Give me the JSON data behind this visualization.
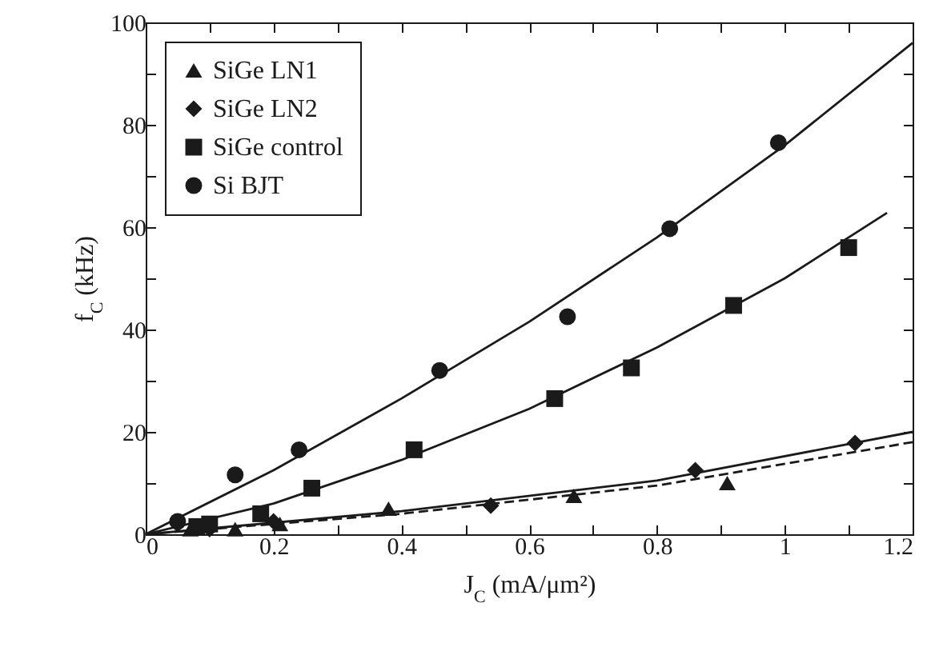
{
  "chart_data": {
    "type": "scatter",
    "xlabel": "J$_{C}$ (mA/μm²)",
    "ylabel": "f$_{C}$ (kHz)",
    "xlim": [
      0,
      1.2
    ],
    "ylim": [
      0,
      100
    ],
    "xticks": [
      0,
      {
        "value": 0.1,
        "label": null
      },
      0.2,
      {
        "value": 0.3,
        "label": null
      },
      0.4,
      {
        "value": 0.5,
        "label": null
      },
      0.6,
      {
        "value": 0.7,
        "label": null
      },
      0.8,
      {
        "value": 0.9,
        "label": null
      },
      1.0,
      {
        "value": 1.1,
        "label": null
      },
      1.2
    ],
    "yticks": [
      0,
      {
        "value": 10,
        "label": null
      },
      20,
      {
        "value": 30,
        "label": null
      },
      40,
      {
        "value": 50,
        "label": null
      },
      60,
      {
        "value": 70,
        "label": null
      },
      80,
      {
        "value": 90,
        "label": null
      },
      100
    ],
    "legend": "top left",
    "grid": false,
    "series": [
      {
        "name": "SiGe LN1",
        "marker": "triangle",
        "color": "#1a1a1a",
        "x": [
          0.07,
          0.14,
          0.21,
          0.38,
          0.67,
          0.91
        ],
        "values": [
          1,
          1,
          2,
          5,
          7.5,
          10
        ]
      },
      {
        "name": "SiGe LN2",
        "marker": "diamond",
        "color": "#1a1a1a",
        "x": [
          0.05,
          0.1,
          0.2,
          0.54,
          0.86,
          1.11
        ],
        "values": [
          2,
          1,
          2.5,
          5.6,
          12.5,
          17.8
        ]
      },
      {
        "name": "SiGe control",
        "marker": "square",
        "color": "#1a1a1a",
        "x": [
          0.08,
          0.1,
          0.18,
          0.26,
          0.42,
          0.64,
          0.76,
          0.92,
          1.1
        ],
        "values": [
          1.5,
          2,
          4,
          9,
          16.5,
          26.5,
          32.5,
          44.7,
          56
        ]
      },
      {
        "name": "Si BJT",
        "marker": "circle",
        "color": "#1a1a1a",
        "x": [
          0.05,
          0.14,
          0.24,
          0.46,
          0.66,
          0.82,
          0.99
        ],
        "values": [
          2.5,
          11.6,
          16.5,
          32,
          42.5,
          59.7,
          76.5
        ]
      },
      {
        "type": "line",
        "line_style": "dashed",
        "color": "#1a1a1a",
        "x": [
          0,
          0.4,
          0.8,
          1.2
        ],
        "values": [
          0,
          4,
          9.5,
          18
        ]
      },
      {
        "type": "line",
        "line_style": "solid",
        "color": "#1a1a1a",
        "x": [
          0,
          0.4,
          0.8,
          1.2
        ],
        "values": [
          0,
          4.5,
          10.5,
          20
        ]
      },
      {
        "type": "line",
        "line_style": "solid",
        "color": "#1a1a1a",
        "x": [
          0,
          0.2,
          0.4,
          0.6,
          0.8,
          1.0,
          1.16
        ],
        "values": [
          0,
          6,
          14.5,
          24.5,
          36.5,
          50,
          62.8
        ]
      },
      {
        "type": "line",
        "line_style": "solid",
        "color": "#1a1a1a",
        "x": [
          0,
          0.2,
          0.4,
          0.6,
          0.8,
          1.0,
          1.2
        ],
        "values": [
          0,
          12.5,
          26.5,
          41.5,
          58,
          76,
          96
        ]
      }
    ]
  }
}
